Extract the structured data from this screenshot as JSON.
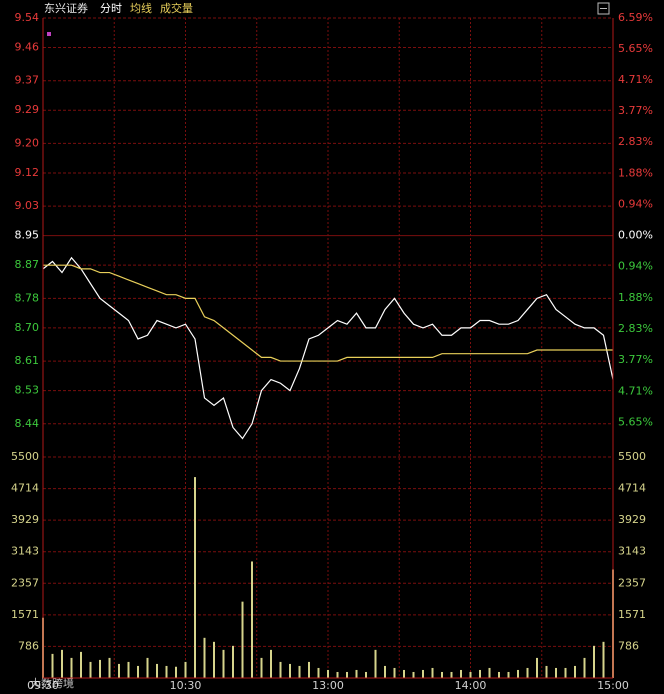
{
  "chart_data": [
    {
      "type": "line",
      "title": "东兴证券",
      "x": [
        0,
        4,
        8,
        12,
        16,
        20,
        24,
        28,
        32,
        36,
        40,
        44,
        48,
        52,
        56,
        60,
        64,
        68,
        72,
        76,
        80,
        84,
        88,
        92,
        96,
        100,
        104,
        108,
        112,
        116,
        120,
        124,
        128,
        132,
        136,
        140,
        144,
        148,
        152,
        156,
        160,
        164,
        168,
        172,
        176,
        180,
        184,
        188,
        192,
        196,
        200,
        204,
        208,
        212,
        216,
        220,
        224,
        228,
        232,
        236,
        240
      ],
      "series": [
        {
          "name": "分时",
          "color": "#ffffff",
          "values": [
            8.86,
            8.88,
            8.85,
            8.89,
            8.86,
            8.82,
            8.78,
            8.76,
            8.74,
            8.72,
            8.67,
            8.68,
            8.72,
            8.71,
            8.7,
            8.71,
            8.67,
            8.51,
            8.49,
            8.51,
            8.43,
            8.4,
            8.44,
            8.53,
            8.56,
            8.55,
            8.53,
            8.59,
            8.67,
            8.68,
            8.7,
            8.72,
            8.71,
            8.74,
            8.7,
            8.7,
            8.75,
            8.78,
            8.74,
            8.71,
            8.7,
            8.71,
            8.68,
            8.68,
            8.7,
            8.7,
            8.72,
            8.72,
            8.71,
            8.71,
            8.72,
            8.75,
            8.78,
            8.79,
            8.75,
            8.73,
            8.71,
            8.7,
            8.7,
            8.68,
            8.56
          ]
        },
        {
          "name": "均线",
          "color": "#e8cf5a",
          "values": [
            8.87,
            8.87,
            8.87,
            8.87,
            8.86,
            8.86,
            8.85,
            8.85,
            8.84,
            8.83,
            8.82,
            8.81,
            8.8,
            8.79,
            8.79,
            8.78,
            8.78,
            8.73,
            8.72,
            8.7,
            8.68,
            8.66,
            8.64,
            8.62,
            8.62,
            8.61,
            8.61,
            8.61,
            8.61,
            8.61,
            8.61,
            8.61,
            8.62,
            8.62,
            8.62,
            8.62,
            8.62,
            8.62,
            8.62,
            8.62,
            8.62,
            8.62,
            8.63,
            8.63,
            8.63,
            8.63,
            8.63,
            8.63,
            8.63,
            8.63,
            8.63,
            8.63,
            8.64,
            8.64,
            8.64,
            8.64,
            8.64,
            8.64,
            8.64,
            8.64,
            8.64
          ]
        }
      ],
      "xlim": [
        0,
        240
      ],
      "xgrid": [
        30,
        60,
        90,
        120,
        150,
        180,
        210
      ],
      "ylim": [
        8.35,
        9.54
      ],
      "yticks": [
        9.54,
        9.46,
        9.37,
        9.29,
        {
          "value": 9.2,
          "label": "9.20"
        },
        9.12,
        9.03,
        8.95,
        8.87,
        8.78,
        {
          "value": 8.7,
          "label": "8.70"
        },
        8.61,
        8.53,
        8.44
      ],
      "base_price": 8.95,
      "y2lim": [
        -6.7,
        6.59
      ],
      "y2ticks": [
        {
          "value": 6.59,
          "label": "6.59%"
        },
        {
          "value": 5.65,
          "label": "5.65%"
        },
        {
          "value": 4.71,
          "label": "4.71%"
        },
        {
          "value": 3.77,
          "label": "3.77%"
        },
        {
          "value": 2.83,
          "label": "2.83%"
        },
        {
          "value": 1.88,
          "label": "1.88%"
        },
        {
          "value": 0.94,
          "label": "0.94%"
        },
        {
          "value": 0,
          "label": "0.00%"
        },
        {
          "value": -0.94,
          "label": "0.94%"
        },
        {
          "value": -1.88,
          "label": "1.88%"
        },
        {
          "value": -2.83,
          "label": "2.83%"
        },
        {
          "value": -3.77,
          "label": "3.77%"
        },
        {
          "value": -4.71,
          "label": "4.71%"
        },
        {
          "value": -5.65,
          "label": "5.65%"
        }
      ],
      "up_color": "#e83a3a",
      "down_color": "#3cc83c",
      "flat_color": "#ffffff"
    },
    {
      "type": "bar",
      "name": "成交量",
      "color": "#d6d48c",
      "x": [
        0,
        4,
        8,
        12,
        16,
        20,
        24,
        28,
        32,
        36,
        40,
        44,
        48,
        52,
        56,
        60,
        64,
        68,
        72,
        76,
        80,
        84,
        88,
        92,
        96,
        100,
        104,
        108,
        112,
        116,
        120,
        124,
        128,
        132,
        136,
        140,
        144,
        148,
        152,
        156,
        160,
        164,
        168,
        172,
        176,
        180,
        184,
        188,
        192,
        196,
        200,
        204,
        208,
        212,
        216,
        220,
        224,
        228,
        232,
        236,
        240
      ],
      "values": [
        1500,
        600,
        700,
        500,
        650,
        400,
        450,
        500,
        350,
        400,
        300,
        500,
        350,
        300,
        280,
        400,
        5000,
        1000,
        900,
        700,
        800,
        1900,
        2900,
        500,
        700,
        400,
        350,
        300,
        400,
        250,
        200,
        150,
        150,
        200,
        150,
        700,
        300,
        250,
        200,
        150,
        200,
        250,
        150,
        150,
        200,
        150,
        200,
        250,
        150,
        150,
        200,
        250,
        500,
        300,
        250,
        250,
        300,
        500,
        800,
        900,
        2700
      ],
      "xlim": [
        0,
        240
      ],
      "xticks": [
        {
          "value": 0,
          "label": "09:30"
        },
        {
          "value": 60,
          "label": "10:30"
        },
        {
          "value": 120,
          "label": "13:00"
        },
        {
          "value": 180,
          "label": "14:00"
        },
        {
          "value": 240,
          "label": "15:00"
        }
      ],
      "ylim": [
        0,
        5500
      ],
      "yticks": [
        5500,
        4714,
        3929,
        3143,
        2357,
        1571,
        786
      ],
      "watermark": "大数跨境"
    }
  ]
}
